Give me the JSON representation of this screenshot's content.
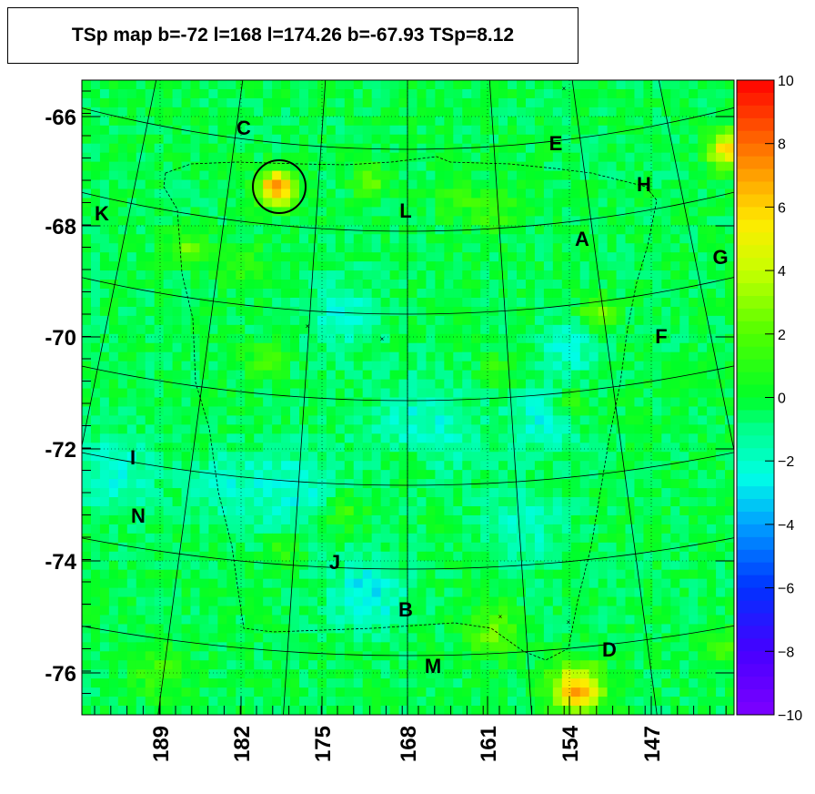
{
  "title": "TSp map b=-72 l=168 l=174.26 b=-67.93 TSp=8.12",
  "chart_data": {
    "type": "heatmap",
    "title": "TSp map b=-72 l=168 l=174.26 b=-67.93 TSp=8.12",
    "xlabel": "",
    "ylabel": "",
    "x_ticks": [
      "189",
      "182",
      "175",
      "168",
      "161",
      "154",
      "147"
    ],
    "y_ticks": [
      "-66",
      "-68",
      "-70",
      "-72",
      "-74",
      "-76"
    ],
    "colorbar": {
      "min": -10,
      "max": 10,
      "ticks": [
        "10",
        "8",
        "6",
        "4",
        "2",
        "0",
        "−2",
        "−4",
        "−6",
        "−8",
        "−10"
      ]
    },
    "grid": true,
    "region_labels": [
      "C",
      "E",
      "H",
      "K",
      "L",
      "A",
      "G",
      "F",
      "I",
      "N",
      "J",
      "B",
      "D",
      "M"
    ],
    "peak": {
      "l": 174.26,
      "b": -67.93,
      "TSp": 8.12
    },
    "hot_spots_TSp": [
      8.12,
      7.0,
      6.0,
      3.0,
      2.5,
      2.5,
      2.5,
      2.0,
      2.0,
      2.0,
      2.0,
      2.0,
      2.0,
      2.0,
      1.5,
      1.5,
      1.5,
      1.5
    ],
    "cold_spots_TSp": [
      -2.5,
      -2.0,
      -2.0,
      -2.0,
      -2.0,
      -2.0,
      -1.8,
      -1.5,
      -1.5
    ]
  }
}
